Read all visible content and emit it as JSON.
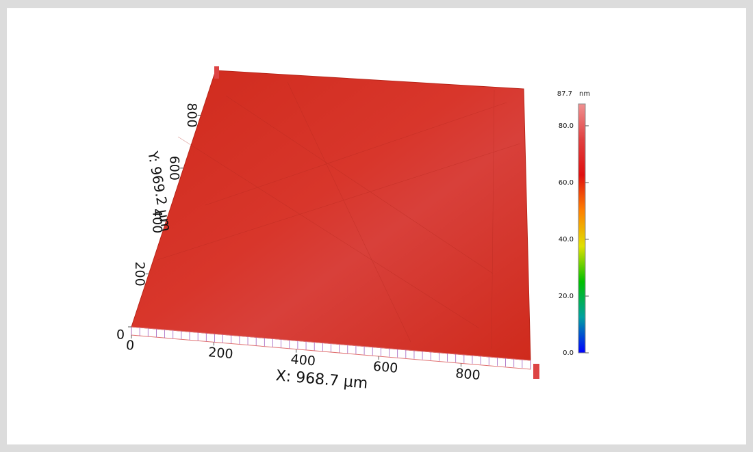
{
  "chart_data": {
    "type": "surface3d",
    "x_label": "X: 968.7 µm",
    "y_label": "Y: 969.2 µm",
    "xlim": [
      0,
      968.7
    ],
    "ylim": [
      0,
      969.2
    ],
    "xticks": [
      0,
      200,
      400,
      600,
      800
    ],
    "yticks": [
      0,
      200,
      400,
      600,
      800
    ],
    "zlim": [
      0,
      87.7
    ],
    "z_max_label": "87.7",
    "z_unit": "nm",
    "zticks": [
      {
        "value": 0,
        "label": "0.0"
      },
      {
        "value": 20,
        "label": "20.0"
      },
      {
        "value": 40,
        "label": "40.0"
      },
      {
        "value": 60,
        "label": "60.0"
      },
      {
        "value": 80,
        "label": "80.0"
      }
    ],
    "colormap": [
      "#0000ff",
      "#00a0a0",
      "#00c000",
      "#e0e000",
      "#ff8000",
      "#e01010",
      "#e04040",
      "#f09090"
    ]
  }
}
